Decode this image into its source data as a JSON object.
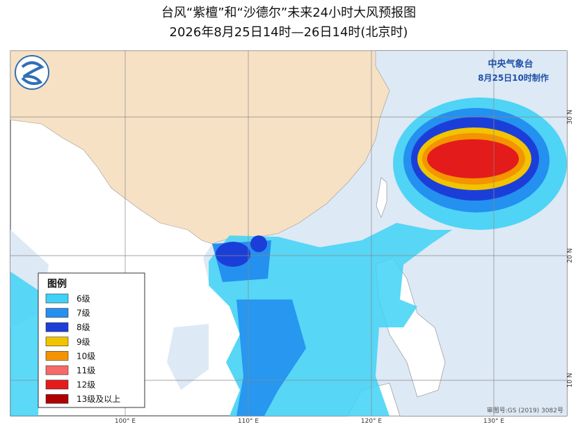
{
  "header": {
    "title": "台风“紫檀”和“沙德尔”未来24小时大风预报图",
    "subtitle": "2026年8月25日14时—26日14时(北京时)"
  },
  "agency": {
    "name": "中央气象台",
    "issued": "8月25日10时制作"
  },
  "legend": {
    "title": "图例",
    "items": [
      {
        "label": "6级",
        "color": "#3fd2f6"
      },
      {
        "label": "7级",
        "color": "#2490ef"
      },
      {
        "label": "8级",
        "color": "#1c3ed8"
      },
      {
        "label": "9级",
        "color": "#f2c300"
      },
      {
        "label": "10级",
        "color": "#f39400"
      },
      {
        "label": "11级",
        "color": "#f56a6a"
      },
      {
        "label": "12级",
        "color": "#e41b1b"
      },
      {
        "label": "13级及以上",
        "color": "#b00000"
      }
    ]
  },
  "axes": {
    "longitude": [
      "100° E",
      "110° E",
      "120° E",
      "130° E"
    ],
    "latitude": [
      "30 N",
      "20 N",
      "10 N"
    ]
  },
  "footer": {
    "approval": "审图号:GS (2019) 3082号"
  }
}
